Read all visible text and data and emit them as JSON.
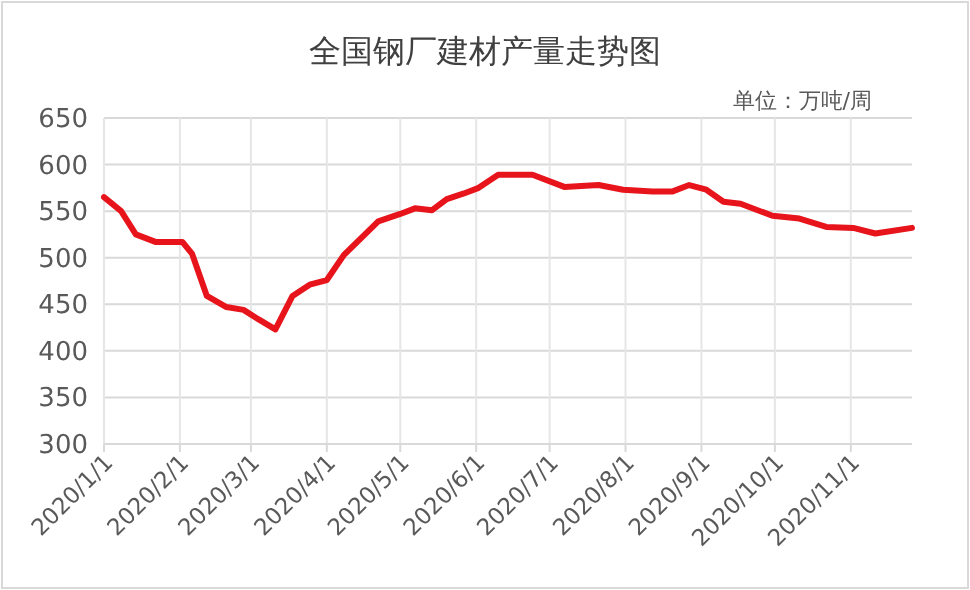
{
  "chart_data": {
    "type": "line",
    "title": "全国钢厂建材产量走势图",
    "annotations": [
      "单位：万吨/周"
    ],
    "x": [
      "2020-01-01",
      "2020-01-08",
      "2020-01-14",
      "2020-01-22",
      "2020-02-02",
      "2020-02-06",
      "2020-02-12",
      "2020-02-20",
      "2020-02-27",
      "2020-03-04",
      "2020-03-11",
      "2020-03-18",
      "2020-03-25",
      "2020-04-01",
      "2020-04-08",
      "2020-04-15",
      "2020-04-22",
      "2020-05-01",
      "2020-05-07",
      "2020-05-14",
      "2020-05-20",
      "2020-05-27",
      "2020-06-02",
      "2020-06-10",
      "2020-06-24",
      "2020-07-07",
      "2020-07-21",
      "2020-07-31",
      "2020-08-12",
      "2020-08-20",
      "2020-08-27",
      "2020-09-03",
      "2020-09-10",
      "2020-09-17",
      "2020-09-30",
      "2020-10-11",
      "2020-10-22",
      "2020-11-02",
      "2020-11-11",
      "2020-11-26"
    ],
    "series": [
      {
        "color": "#e8141b",
        "values": [
          565,
          550,
          525,
          517,
          517,
          504,
          459,
          447,
          444,
          434,
          423,
          459,
          471,
          476,
          503,
          521,
          539,
          547,
          553,
          551,
          563,
          569,
          575,
          589,
          589,
          576,
          578,
          573,
          571,
          571,
          578,
          573,
          560,
          558,
          545,
          542,
          533,
          532,
          526,
          532
        ]
      }
    ],
    "xlim": [
      "2020-01-01",
      "2020-11-26"
    ],
    "xticks": [
      {
        "value": "2020-01-01",
        "label": "2020/1/1"
      },
      {
        "value": "2020-02-01",
        "label": "2020/2/1"
      },
      {
        "value": "2020-03-01",
        "label": "2020/3/1"
      },
      {
        "value": "2020-04-01",
        "label": "2020/4/1"
      },
      {
        "value": "2020-05-01",
        "label": "2020/5/1"
      },
      {
        "value": "2020-06-01",
        "label": "2020/6/1"
      },
      {
        "value": "2020-07-01",
        "label": "2020/7/1"
      },
      {
        "value": "2020-08-01",
        "label": "2020/8/1"
      },
      {
        "value": "2020-09-01",
        "label": "2020/9/1"
      },
      {
        "value": "2020-10-01",
        "label": "2020/10/1"
      },
      {
        "value": "2020-11-01",
        "label": "2020/11/1"
      }
    ],
    "ylim": [
      300,
      650
    ],
    "yticks": [
      300,
      350,
      400,
      450,
      500,
      550,
      600,
      650
    ],
    "grid": true,
    "marker": "none",
    "line_style": "solid"
  }
}
